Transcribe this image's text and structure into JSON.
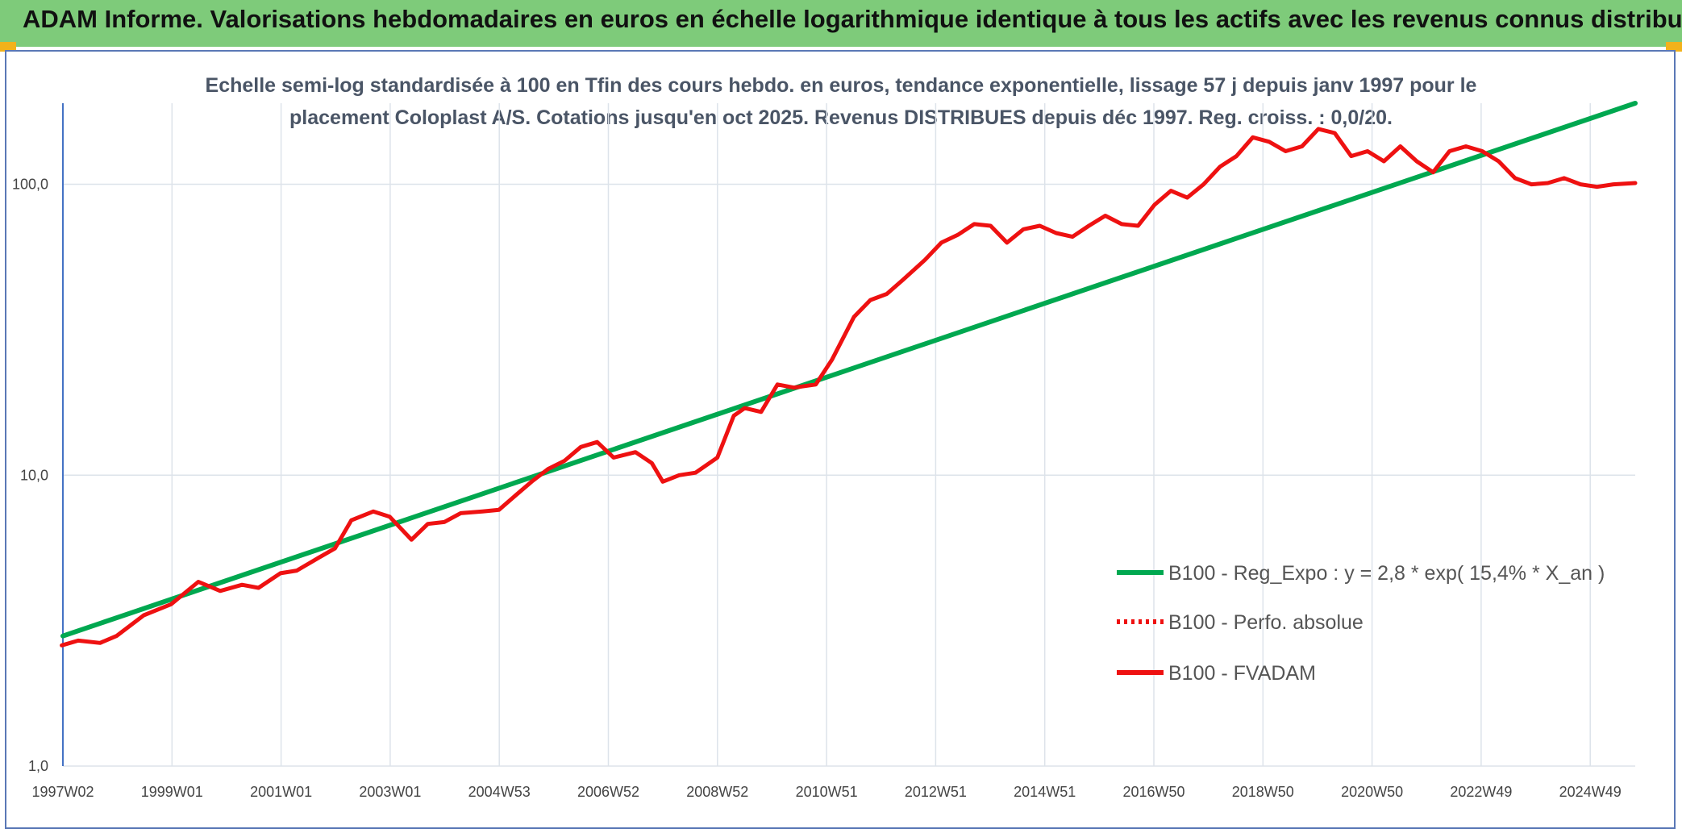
{
  "header": {
    "title": "ADAM Informe. Valorisations hebdomadaires en euros en échelle logarithmique identique à tous les actifs avec les revenus connus distribués"
  },
  "colors": {
    "header_bg": "#7ecb7a",
    "trend": "#00a850",
    "price": "#ee1111",
    "grid": "#dde3ea"
  },
  "chart_data": {
    "type": "line",
    "title": "Echelle semi-log standardisée à 100 en Tfin des cours hebdo. en euros, tendance exponentielle, lissage 57 j depuis janv 1997 pour le placement Coloplast A/S. Cotations jusqu'en oct 2025. Revenus DISTRIBUES depuis déc 1997. Reg. croiss. : 0,0/20.",
    "title_lines": [
      "Echelle semi-log standardisée à 100 en Tfin des cours hebdo. en euros, tendance exponentielle, lissage 57 j depuis janv 1997 pour le",
      "placement Coloplast A/S. Cotations jusqu'en oct 2025. Revenus DISTRIBUES depuis déc 1997. Reg. croiss. : 0,0/20."
    ],
    "y_scale": "log",
    "ylim": [
      1,
      190
    ],
    "y_ticks": [
      1,
      10,
      100
    ],
    "y_tick_labels": [
      "1,0",
      "10,0",
      "100,0"
    ],
    "x_range": [
      1997.02,
      2025.8
    ],
    "x_tick_labels": [
      "1997W02",
      "1999W01",
      "2001W01",
      "2003W01",
      "2004W53",
      "2006W52",
      "2008W52",
      "2010W51",
      "2012W51",
      "2014W51",
      "2016W50",
      "2018W50",
      "2020W50",
      "2022W49",
      "2024W49"
    ],
    "grid": "vertical and horizontal",
    "legend_position": "lower-right",
    "series": [
      {
        "name": "B100 - Reg_Expo : y = 2,8 * exp( 15,4% * X_an )",
        "color": "#00a850",
        "style": "solid",
        "x": [
          1997.02,
          2025.8
        ],
        "y": [
          2.8,
          190
        ]
      },
      {
        "name": "B100 - Perfo. absolue",
        "color": "#ee1111",
        "style": "dotted",
        "x": [],
        "y": []
      },
      {
        "name": "B100 - FVADAM",
        "color": "#ee1111",
        "style": "solid",
        "x": [
          1997.0,
          1997.3,
          1997.7,
          1998.0,
          1998.5,
          1999.0,
          1999.5,
          1999.9,
          2000.3,
          2000.6,
          2001.0,
          2001.3,
          2001.7,
          2002.0,
          2002.3,
          2002.7,
          2003.0,
          2003.4,
          2003.7,
          2004.0,
          2004.3,
          2004.7,
          2005.0,
          2005.3,
          2005.6,
          2005.9,
          2006.2,
          2006.5,
          2006.8,
          2007.1,
          2007.5,
          2007.8,
          2008.0,
          2008.3,
          2008.6,
          2009.0,
          2009.3,
          2009.5,
          2009.8,
          2010.1,
          2010.4,
          2010.8,
          2011.1,
          2011.5,
          2011.8,
          2012.1,
          2012.4,
          2012.8,
          2013.1,
          2013.4,
          2013.7,
          2014.0,
          2014.3,
          2014.6,
          2014.9,
          2015.2,
          2015.5,
          2015.8,
          2016.1,
          2016.4,
          2016.7,
          2017.0,
          2017.3,
          2017.6,
          2017.9,
          2018.2,
          2018.5,
          2018.8,
          2019.1,
          2019.4,
          2019.7,
          2020.0,
          2020.3,
          2020.6,
          2020.9,
          2021.2,
          2021.5,
          2021.8,
          2022.1,
          2022.4,
          2022.7,
          2023.0,
          2023.3,
          2023.6,
          2023.9,
          2024.2,
          2024.5,
          2024.8,
          2025.1,
          2025.4,
          2025.8
        ],
        "y": [
          2.6,
          2.7,
          2.65,
          2.8,
          3.3,
          3.6,
          4.3,
          4.0,
          4.2,
          4.1,
          4.6,
          4.7,
          5.2,
          5.6,
          7.0,
          7.5,
          7.2,
          6.0,
          6.8,
          6.9,
          7.4,
          7.5,
          7.6,
          8.5,
          9.5,
          10.5,
          11.2,
          12.5,
          13.0,
          11.5,
          12.0,
          11.0,
          9.5,
          10.0,
          10.2,
          11.5,
          16.0,
          17.0,
          16.5,
          20.5,
          20.0,
          20.5,
          25.0,
          35.0,
          40.0,
          42.0,
          47.0,
          55.0,
          63.0,
          67.0,
          73.0,
          72.0,
          63.0,
          70.0,
          72.0,
          68.0,
          66.0,
          72.0,
          78.0,
          73.0,
          72.0,
          85.0,
          95.0,
          90.0,
          100.0,
          115.0,
          125.0,
          145.0,
          140.0,
          130.0,
          135.0,
          155.0,
          150.0,
          125.0,
          130.0,
          120.0,
          135.0,
          120.0,
          110.0,
          130.0,
          135.0,
          130.0,
          120.0,
          105.0,
          100.0,
          101.0,
          105.0,
          100.0,
          98.0,
          100.0,
          101.0
        ]
      }
    ]
  }
}
